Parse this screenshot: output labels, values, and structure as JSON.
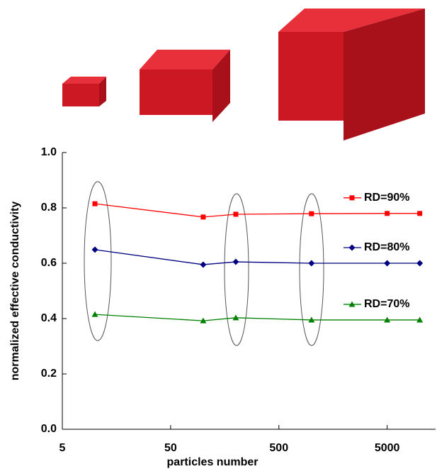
{
  "chart_data": {
    "type": "line",
    "x_label": "particles number",
    "y_label": "normalized effective conductivity",
    "x_log": true,
    "x": [
      10,
      100,
      200,
      1000,
      5000,
      10000
    ],
    "xlim": [
      5,
      14000
    ],
    "xticks": [
      5,
      50,
      500,
      5000
    ],
    "ylim": [
      0,
      1.0
    ],
    "yticks": [
      {
        "value": 0,
        "label": "0.0"
      },
      0.2,
      0.4,
      0.6,
      0.8,
      {
        "value": 1.0,
        "label": "1.0"
      }
    ],
    "series": [
      {
        "name": "RD=90%",
        "color": "#ff0000",
        "marker": "square",
        "values": [
          0.815,
          0.767,
          0.777,
          0.779,
          0.78,
          0.78
        ]
      },
      {
        "name": "RD=80%",
        "color": "#000080",
        "marker": "diamond",
        "values": [
          0.649,
          0.595,
          0.605,
          0.6,
          0.6,
          0.6
        ]
      },
      {
        "name": "RD=70%",
        "color": "#008000",
        "marker": "triangle",
        "values": [
          0.415,
          0.392,
          0.403,
          0.395,
          0.395,
          0.395
        ]
      }
    ]
  }
}
